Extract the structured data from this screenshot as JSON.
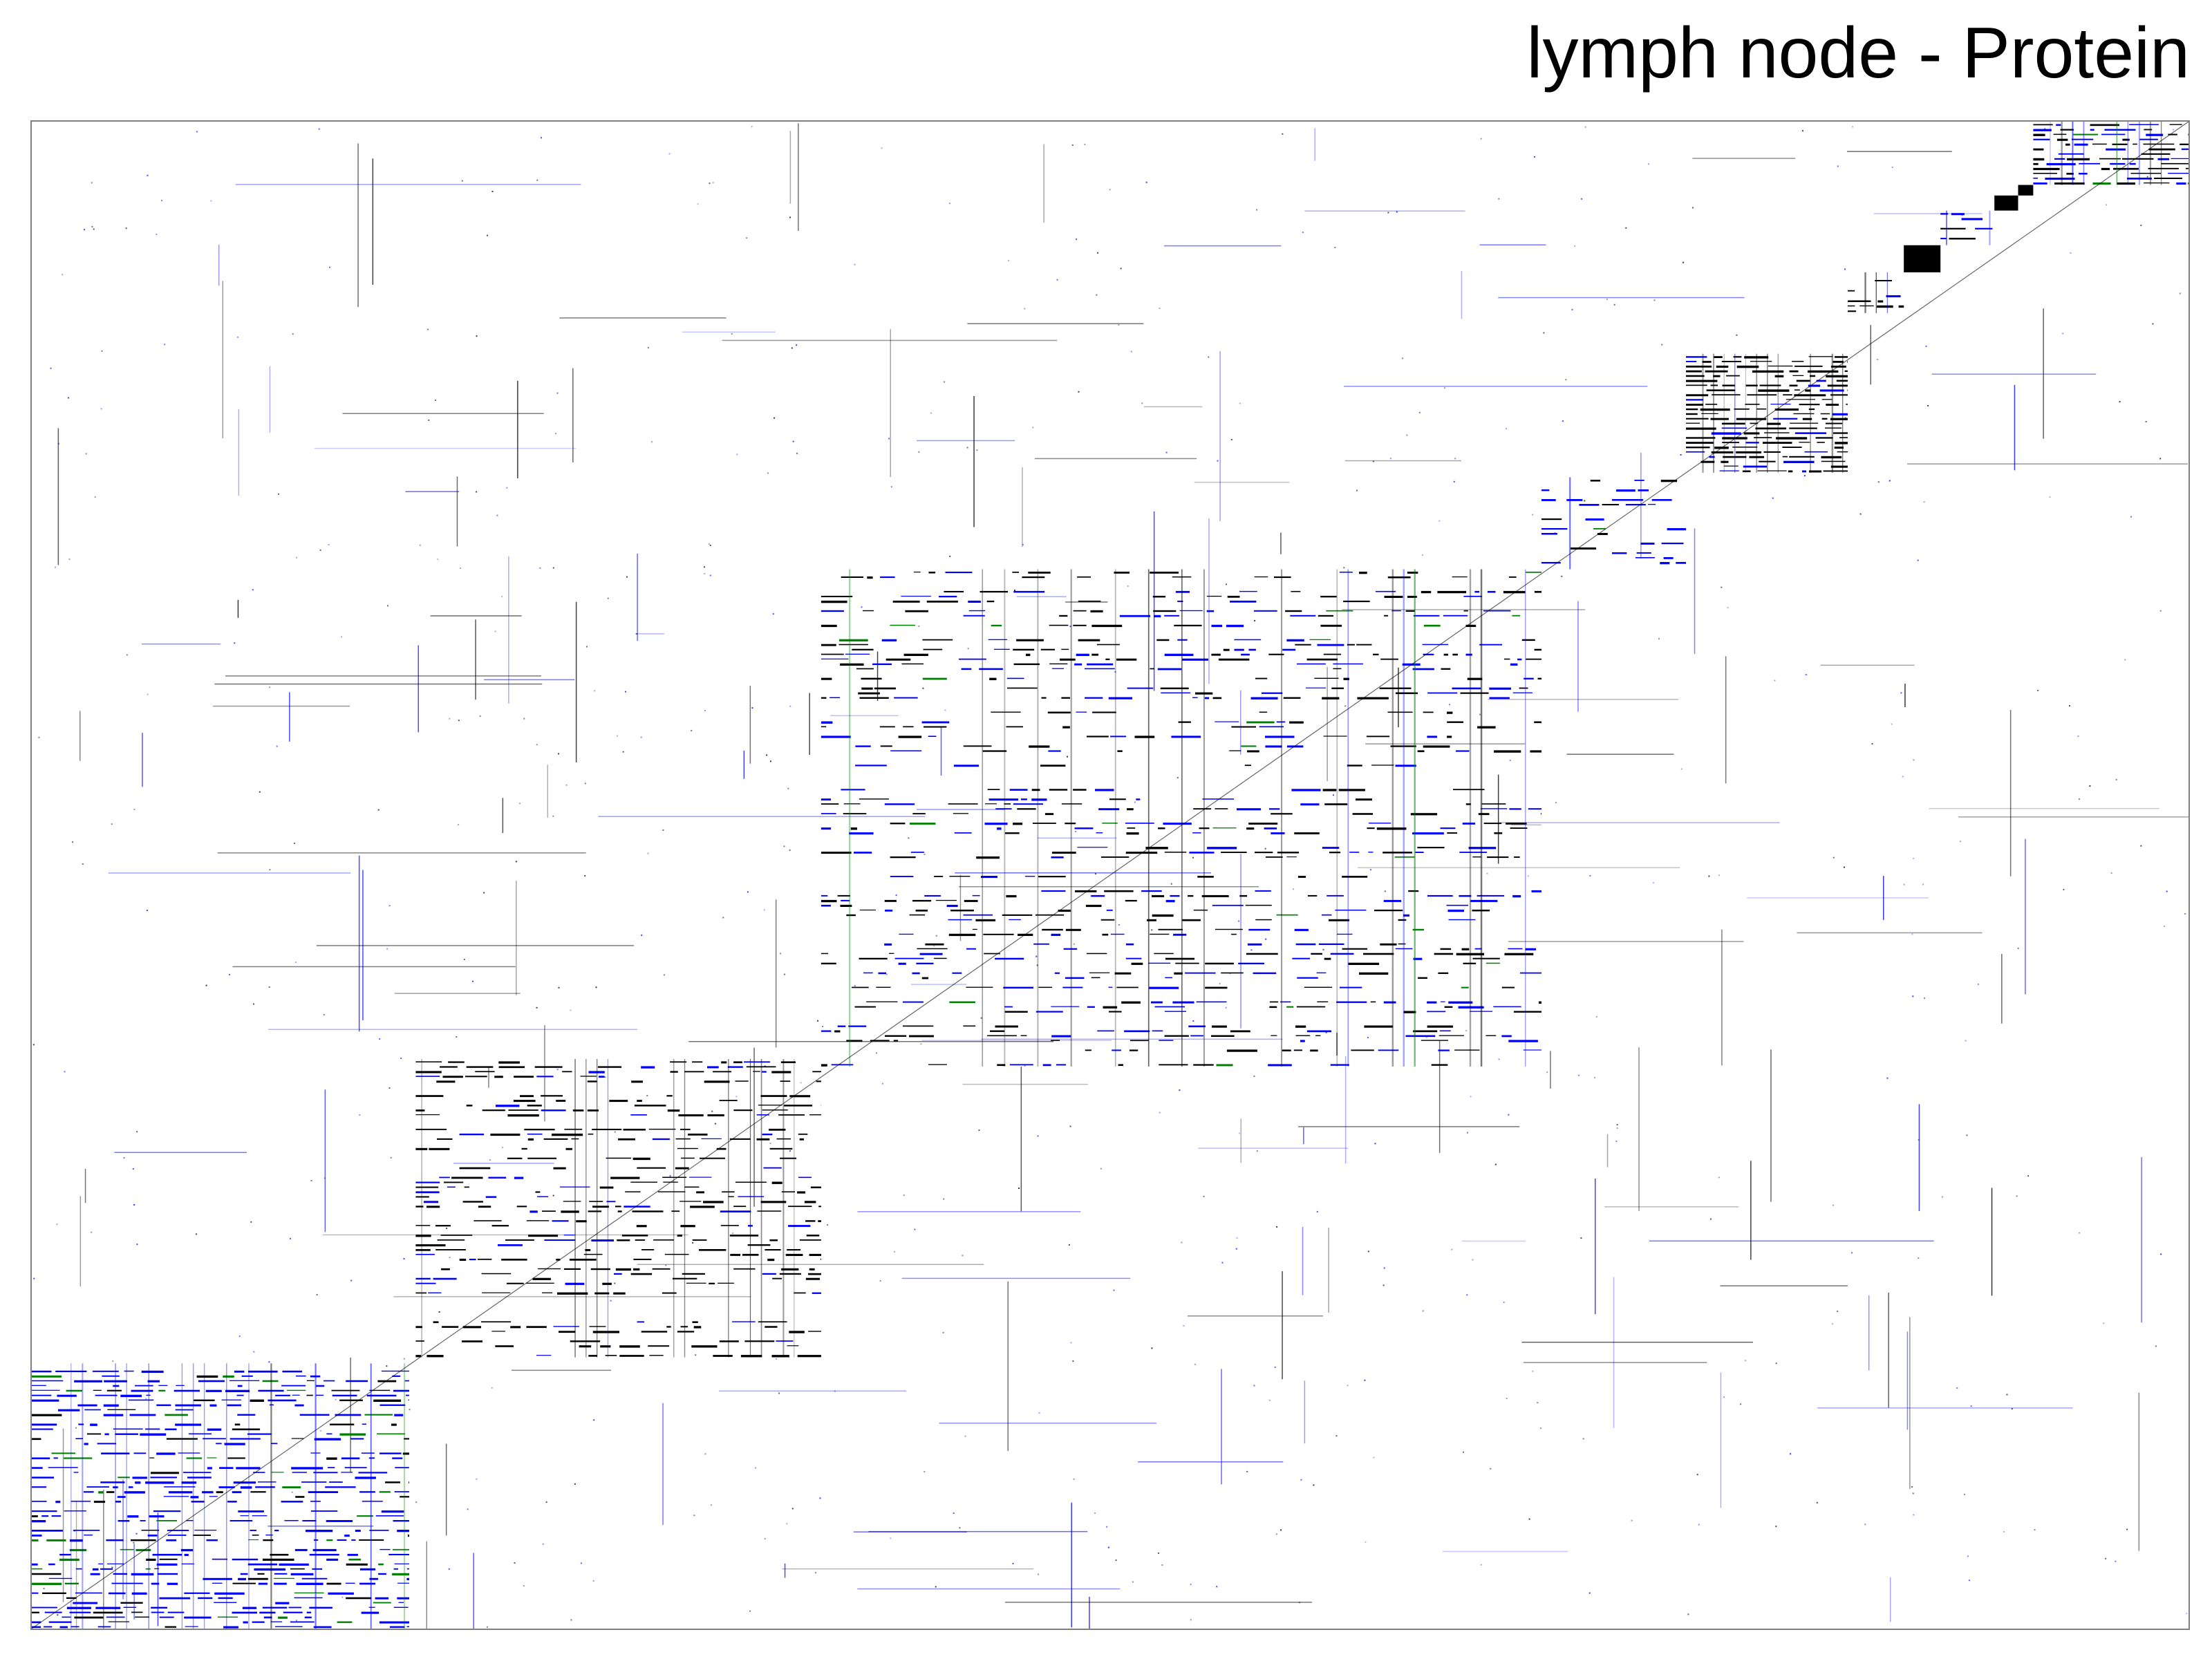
{
  "chart_data": {
    "type": "heatmap",
    "title": "lymph node - Protein",
    "xlabel": "",
    "ylabel": "",
    "grid": false,
    "legend": "none",
    "colors": {
      "background": "#ffffff",
      "frame": "#808080",
      "dark": "#000000",
      "blue": "#0000ff",
      "green": "#008000"
    },
    "matrix": {
      "x_range": [
        0,
        1
      ],
      "y_range": [
        0,
        1
      ],
      "description_of_values": "interaction density (0-1)",
      "blocks": [
        {
          "x0": 0.0,
          "x1": 0.175,
          "y0": 0.0,
          "y1": 0.176,
          "density": 0.55,
          "color": "blue"
        },
        {
          "x0": 0.178,
          "x1": 0.366,
          "y0": 0.18,
          "y1": 0.378,
          "density": 0.45,
          "color": "dark"
        },
        {
          "x0": 0.366,
          "x1": 0.7,
          "y0": 0.373,
          "y1": 0.703,
          "density": 0.35,
          "color": "mixed"
        },
        {
          "x0": 0.7,
          "x1": 0.767,
          "y0": 0.703,
          "y1": 0.764,
          "density": 0.3,
          "color": "blue"
        },
        {
          "x0": 0.767,
          "x1": 0.842,
          "y0": 0.767,
          "y1": 0.846,
          "density": 0.85,
          "color": "dark"
        },
        {
          "x0": 0.842,
          "x1": 0.868,
          "y0": 0.873,
          "y1": 0.9,
          "density": 0.4,
          "color": "dark"
        },
        {
          "x0": 0.868,
          "x1": 0.885,
          "y0": 0.9,
          "y1": 0.918,
          "density": 0.95,
          "color": "dark"
        },
        {
          "x0": 0.885,
          "x1": 0.91,
          "y0": 0.918,
          "y1": 0.941,
          "density": 0.3,
          "color": "blue"
        },
        {
          "x0": 0.91,
          "x1": 0.921,
          "y0": 0.941,
          "y1": 0.951,
          "density": 0.95,
          "color": "dark"
        },
        {
          "x0": 0.921,
          "x1": 0.928,
          "y0": 0.951,
          "y1": 0.958,
          "density": 0.95,
          "color": "dark"
        },
        {
          "x0": 0.928,
          "x1": 1.0,
          "y0": 0.958,
          "y1": 1.0,
          "density": 0.8,
          "color": "mixed"
        }
      ]
    }
  }
}
